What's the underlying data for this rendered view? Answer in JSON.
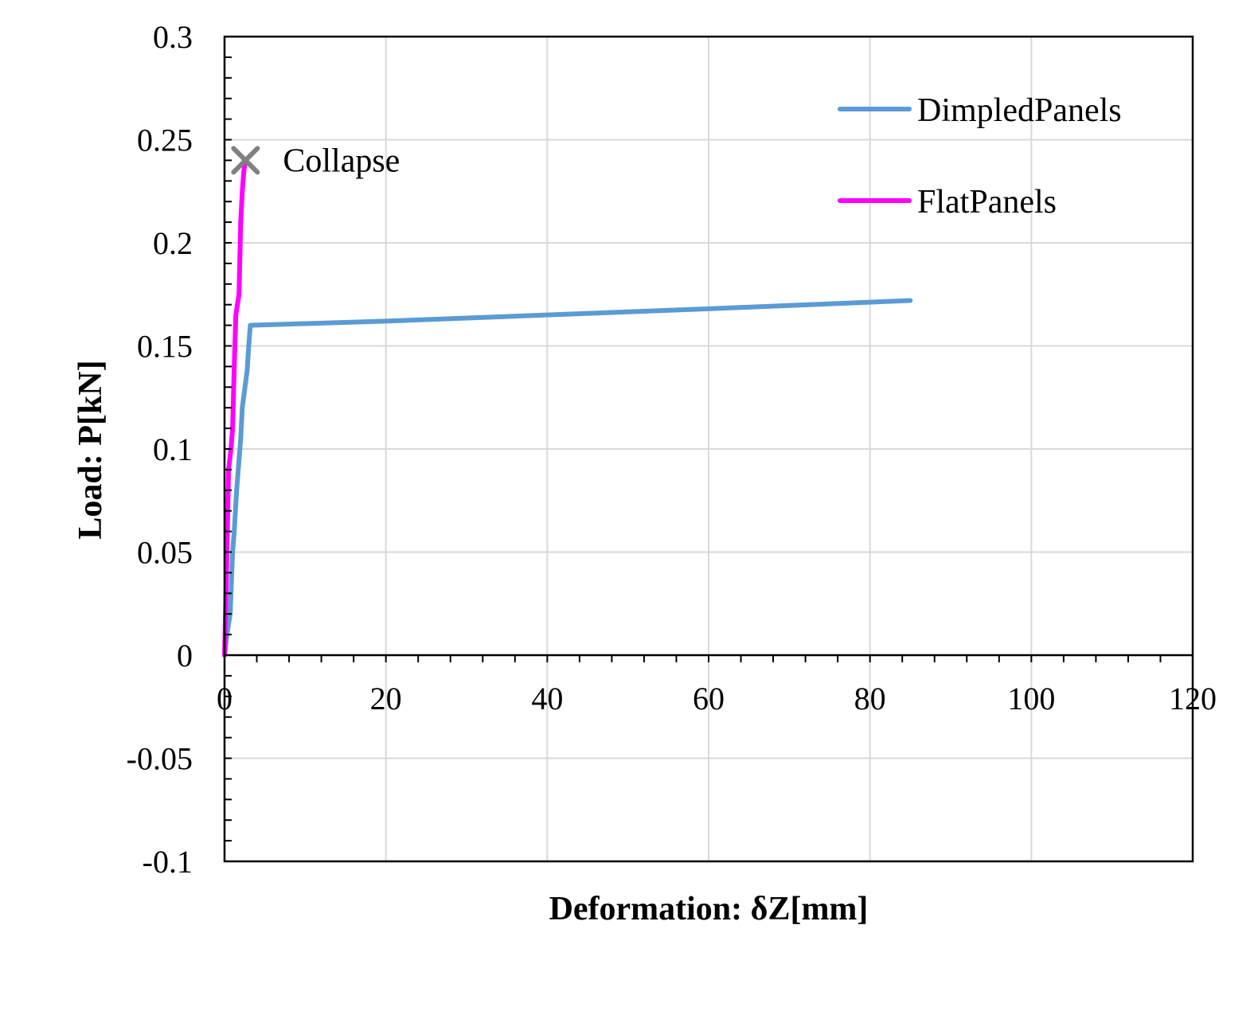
{
  "chart_data": {
    "type": "line",
    "title": "",
    "xlabel": "Deformation:  δZ[mm]",
    "ylabel": "Load:  P[kN]",
    "xlim": [
      0,
      120
    ],
    "ylim": [
      -0.1,
      0.3
    ],
    "x_ticks": [
      "0",
      "20",
      "40",
      "60",
      "80",
      "100",
      "120"
    ],
    "y_ticks": [
      "-0.1",
      "-0.05",
      "0",
      "0.05",
      "0.1",
      "0.15",
      "0.2",
      "0.25",
      "0.3"
    ],
    "grid": true,
    "legend_position": "top-right",
    "series": [
      {
        "name": "DimpledPanels",
        "color": "#5b9bd5",
        "x": [
          0,
          0.3,
          0.7,
          1.0,
          1.2,
          1.5,
          2.0,
          2.2,
          2.8,
          3.0,
          3.2,
          20,
          40,
          60,
          85
        ],
        "y": [
          0,
          0.01,
          0.02,
          0.05,
          0.06,
          0.08,
          0.105,
          0.12,
          0.138,
          0.15,
          0.16,
          0.162,
          0.165,
          0.168,
          0.172
        ]
      },
      {
        "name": "FlatPanels",
        "color": "#ff00ff",
        "x": [
          0,
          0.3,
          0.5,
          0.8,
          1.0,
          1.2,
          1.4,
          1.6,
          1.8,
          2.0,
          2.2,
          2.4,
          2.6
        ],
        "y": [
          0,
          0.05,
          0.09,
          0.1,
          0.11,
          0.14,
          0.165,
          0.17,
          0.175,
          0.21,
          0.225,
          0.235,
          0.24
        ]
      }
    ],
    "annotations": [
      {
        "text": "Collapse",
        "x": 2.6,
        "y": 0.24,
        "marker": "x",
        "color": "#808080"
      }
    ]
  }
}
